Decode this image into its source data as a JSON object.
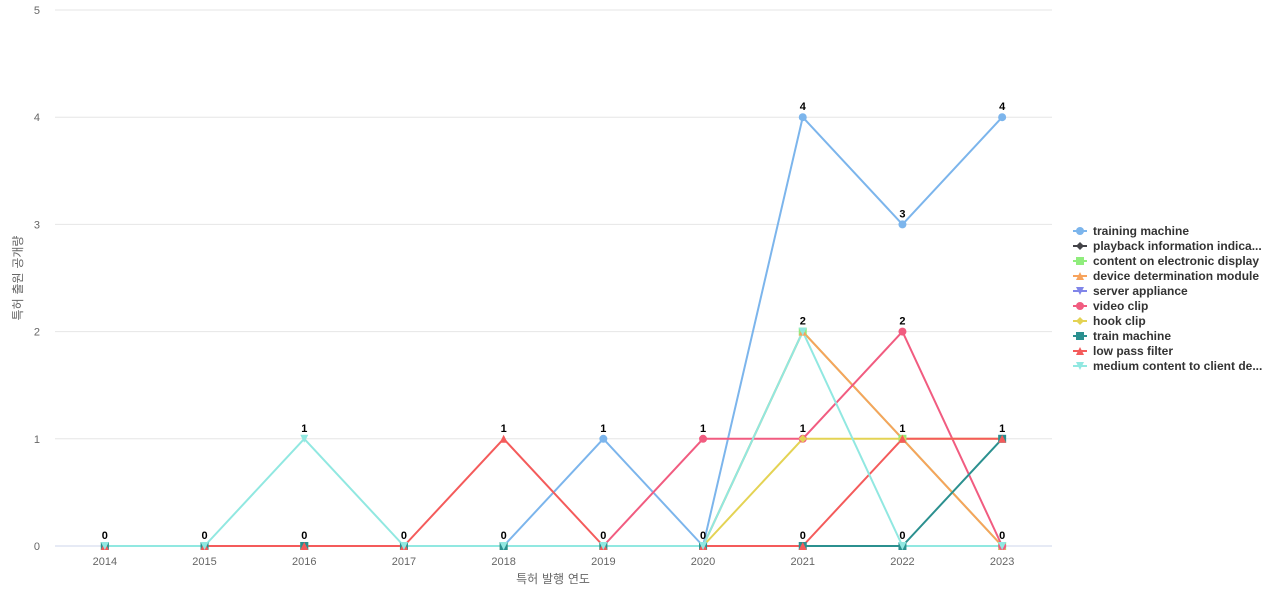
{
  "chart_data": {
    "type": "line",
    "xlabel": "특허 발행 연도",
    "ylabel": "특허 출원 공개량",
    "categories": [
      "2014",
      "2015",
      "2016",
      "2017",
      "2018",
      "2019",
      "2020",
      "2021",
      "2022",
      "2023"
    ],
    "ylim": [
      0,
      5
    ],
    "yticks": [
      0,
      1,
      2,
      3,
      4,
      5
    ],
    "grid": true,
    "legend_position": "right",
    "series": [
      {
        "name": "training machine",
        "color": "#7cb5ec",
        "marker": "circle",
        "values": [
          0,
          0,
          0,
          0,
          0,
          1,
          0,
          4,
          3,
          4
        ]
      },
      {
        "name": "playback information indica...",
        "color": "#434348",
        "marker": "diamond",
        "values": [
          0,
          0,
          0,
          0,
          0,
          0,
          0,
          0,
          0,
          0
        ]
      },
      {
        "name": "content on electronic display",
        "color": "#90ed7d",
        "marker": "square",
        "values": [
          0,
          0,
          0,
          0,
          0,
          0,
          0,
          2,
          1,
          0
        ]
      },
      {
        "name": "device determination module",
        "color": "#f7a35c",
        "marker": "triangle",
        "values": [
          0,
          0,
          0,
          0,
          0,
          0,
          0,
          2,
          1,
          0
        ]
      },
      {
        "name": "server appliance",
        "color": "#8085e9",
        "marker": "triangle-down",
        "values": [
          0,
          0,
          0,
          0,
          0,
          0,
          0,
          0,
          0,
          0
        ]
      },
      {
        "name": "video clip",
        "color": "#f15c80",
        "marker": "circle",
        "values": [
          0,
          0,
          0,
          0,
          0,
          0,
          1,
          1,
          2,
          0
        ]
      },
      {
        "name": "hook clip",
        "color": "#e4d354",
        "marker": "diamond",
        "values": [
          0,
          0,
          0,
          0,
          0,
          0,
          0,
          1,
          1,
          1
        ]
      },
      {
        "name": "train machine",
        "color": "#2b908f",
        "marker": "square",
        "values": [
          0,
          0,
          0,
          0,
          0,
          0,
          0,
          0,
          0,
          1
        ]
      },
      {
        "name": "low pass filter",
        "color": "#f45b5b",
        "marker": "triangle",
        "values": [
          0,
          0,
          0,
          0,
          1,
          0,
          0,
          0,
          1,
          1
        ]
      },
      {
        "name": "medium content to client de...",
        "color": "#91e8e1",
        "marker": "triangle-down",
        "values": [
          0,
          0,
          1,
          0,
          0,
          0,
          0,
          2,
          0,
          0
        ]
      }
    ],
    "data_labels": [
      {
        "x": "2014",
        "value": 0
      },
      {
        "x": "2015",
        "value": 0
      },
      {
        "x": "2016",
        "value": 1
      },
      {
        "x": "2016",
        "value": 0
      },
      {
        "x": "2017",
        "value": 0
      },
      {
        "x": "2018",
        "value": 1
      },
      {
        "x": "2018",
        "value": 0
      },
      {
        "x": "2019",
        "value": 1
      },
      {
        "x": "2019",
        "value": 0
      },
      {
        "x": "2020",
        "value": 1
      },
      {
        "x": "2020",
        "value": 0
      },
      {
        "x": "2021",
        "value": 4
      },
      {
        "x": "2021",
        "value": 2
      },
      {
        "x": "2021",
        "value": 1
      },
      {
        "x": "2021",
        "value": 0
      },
      {
        "x": "2022",
        "value": 3
      },
      {
        "x": "2022",
        "value": 2
      },
      {
        "x": "2022",
        "value": 1
      },
      {
        "x": "2022",
        "value": 0
      },
      {
        "x": "2023",
        "value": 4
      },
      {
        "x": "2023",
        "value": 1
      },
      {
        "x": "2023",
        "value": 0
      }
    ]
  }
}
